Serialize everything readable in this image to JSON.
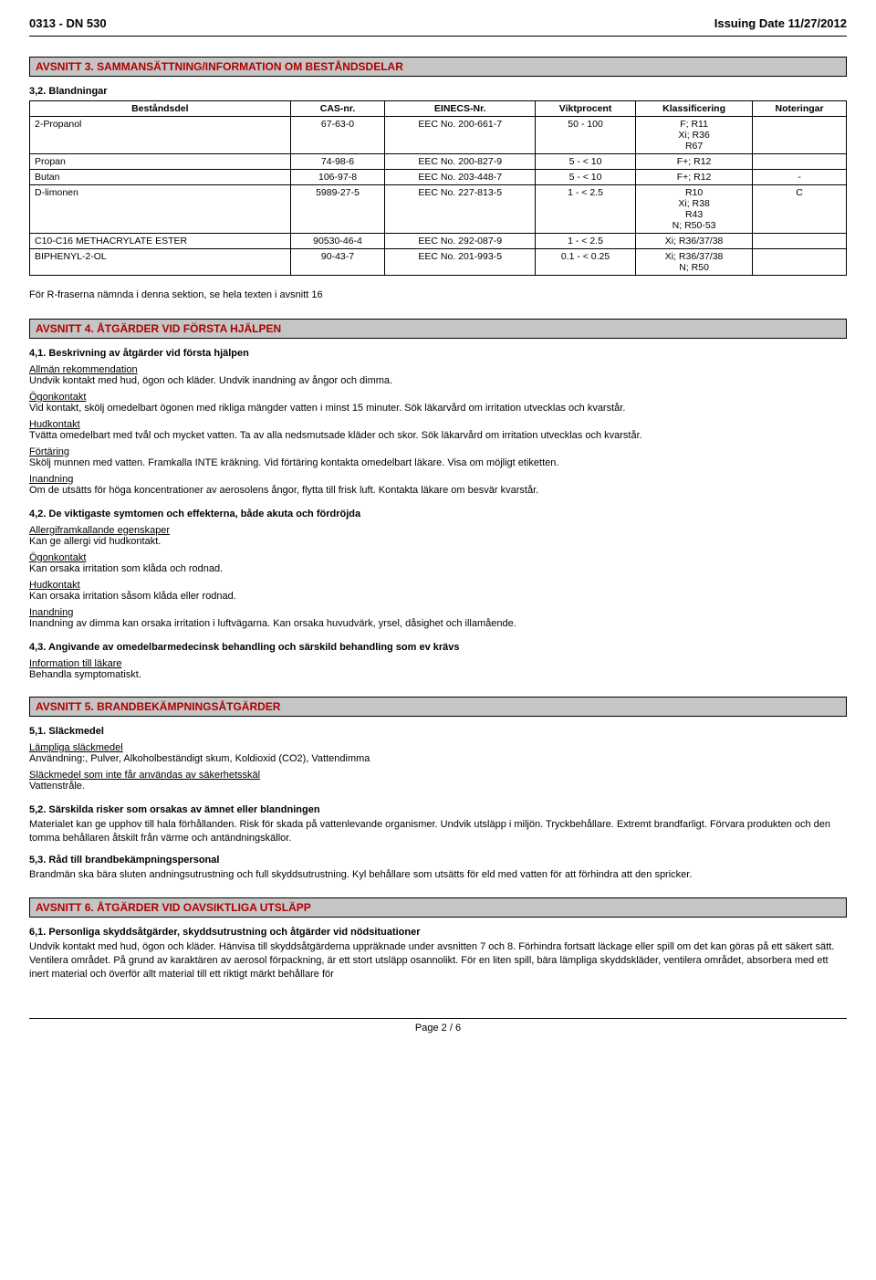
{
  "header": {
    "left": "0313 - DN 530",
    "right": "Issuing Date 11/27/2012"
  },
  "section3": {
    "title": "AVSNITT 3. SAMMANSÄTTNING/INFORMATION OM BESTÅNDSDELAR",
    "mixturesLabel": "3,2. Blandningar",
    "columns": [
      "Beståndsdel",
      "CAS-nr.",
      "EINECS-Nr.",
      "Viktprocent",
      "Klassificering",
      "Noteringar"
    ],
    "rows": [
      {
        "c": [
          "2-Propanol",
          "67-63-0",
          "EEC No. 200-661-7",
          "50 - 100",
          "F; R11\nXi; R36\nR67",
          ""
        ]
      },
      {
        "c": [
          "Propan",
          "74-98-6",
          "EEC No. 200-827-9",
          "5 - < 10",
          "F+; R12",
          ""
        ]
      },
      {
        "c": [
          "Butan",
          "106-97-8",
          "EEC No. 203-448-7",
          "5 - < 10",
          "F+; R12",
          "-"
        ]
      },
      {
        "c": [
          "D-limonen",
          "5989-27-5",
          "EEC No. 227-813-5",
          "1 - < 2.5",
          "R10\nXi; R38\nR43\nN; R50-53",
          "C"
        ]
      },
      {
        "c": [
          "C10-C16 METHACRYLATE ESTER",
          "90530-46-4",
          "EEC No. 292-087-9",
          "1 - < 2.5",
          "Xi; R36/37/38",
          ""
        ]
      },
      {
        "c": [
          "BIPHENYL-2-OL",
          "90-43-7",
          "EEC No. 201-993-5",
          "0.1 - < 0.25",
          "Xi; R36/37/38\nN; R50",
          ""
        ]
      }
    ],
    "note": "För R-fraserna nämnda i denna sektion, se hela texten i avsnitt 16"
  },
  "section4": {
    "title": "AVSNITT 4. ÅTGÄRDER VID FÖRSTA HJÄLPEN",
    "h41": "4,1. Beskrivning av åtgärder vid första hjälpen",
    "genLabel": "Allmän rekommendation",
    "genText": "Undvik kontakt med hud, ögon och kläder. Undvik inandning av ångor och dimma.",
    "eyeLabel": "Ögonkontakt",
    "eyeText": "Vid kontakt, skölj omedelbart ögonen med rikliga mängder vatten i minst 15 minuter. Sök läkarvård om irritation utvecklas och kvarstår.",
    "skinLabel": "Hudkontakt",
    "skinText": "Tvätta omedelbart med tvål och mycket vatten. Ta av alla nedsmutsade kläder och skor. Sök läkarvård om irritation utvecklas och kvarstår.",
    "ingLabel": "Förtäring",
    "ingText": "Skölj munnen med vatten. Framkalla INTE kräkning. Vid förtäring kontakta omedelbart läkare. Visa om möjligt etiketten.",
    "inhLabel": "Inandning",
    "inhText": "Om de utsätts för höga koncentrationer av aerosolens ångor, flytta till frisk luft. Kontakta läkare om besvär kvarstår.",
    "h42": "4,2. De viktigaste symtomen och effekterna, både akuta och fördröjda",
    "allLabel": "Allergiframkallande egenskaper",
    "allText": "Kan ge allergi vid hudkontakt.",
    "eye2Text": "Kan orsaka irritation som klåda och rodnad.",
    "skin2Text": "Kan orsaka irritation såsom klåda eller rodnad.",
    "inh2Text": "Inandning av dimma kan orsaka irritation i luftvägarna. Kan orsaka huvudvärk, yrsel, dåsighet och illamående.",
    "h43": "4,3. Angivande av omedelbarmedecinsk behandling och särskild behandling som ev krävs",
    "infoLabel": "Information till läkare",
    "infoText": "Behandla symptomatiskt."
  },
  "section5": {
    "title": "AVSNITT 5. BRANDBEKÄMPNINGSÅTGÄRDER",
    "h51": "5,1. Släckmedel",
    "suitLabel": "Lämpliga släckmedel",
    "suitText": "Användning:, Pulver, Alkoholbeständigt skum, Koldioxid (CO2), Vattendimma",
    "unsuitLabel": "Släckmedel som inte får användas av säkerhetsskäl",
    "unsuitText": "Vattenstråle.",
    "h52": "5,2. Särskilda risker som orsakas av ämnet eller blandningen",
    "h52Text": "Materialet kan ge upphov till hala förhållanden. Risk för skada på vattenlevande organismer. Undvik utsläpp i miljön. Tryckbehållare. Extremt brandfarligt. Förvara produkten och den tomma behållaren åtskilt från värme och antändningskällor.",
    "h53": "5,3. Råd till brandbekämpningspersonal",
    "h53Text": "Brandmän ska bära sluten andningsutrustning och full skyddsutrustning. Kyl behållare som utsätts för eld med vatten för att förhindra att den spricker."
  },
  "section6": {
    "title": "AVSNITT 6. ÅTGÄRDER VID OAVSIKTLIGA UTSLÄPP",
    "h61": "6,1. Personliga skyddsåtgärder, skyddsutrustning och åtgärder vid nödsituationer",
    "h61Text": "Undvik kontakt med hud, ögon och kläder. Hänvisa till skyddsåtgärderna uppräknade under avsnitten 7 och 8. Förhindra fortsatt läckage eller spill om det kan göras på ett säkert sätt. Ventilera området. På grund av karaktären av aerosol förpackning, är ett stort utsläpp osannolikt. För en liten spill, bära lämpliga skyddskläder, ventilera området, absorbera med ett inert material och överför allt material till ett riktigt märkt behållare för"
  },
  "footer": {
    "page": "Page 2 / 6"
  }
}
